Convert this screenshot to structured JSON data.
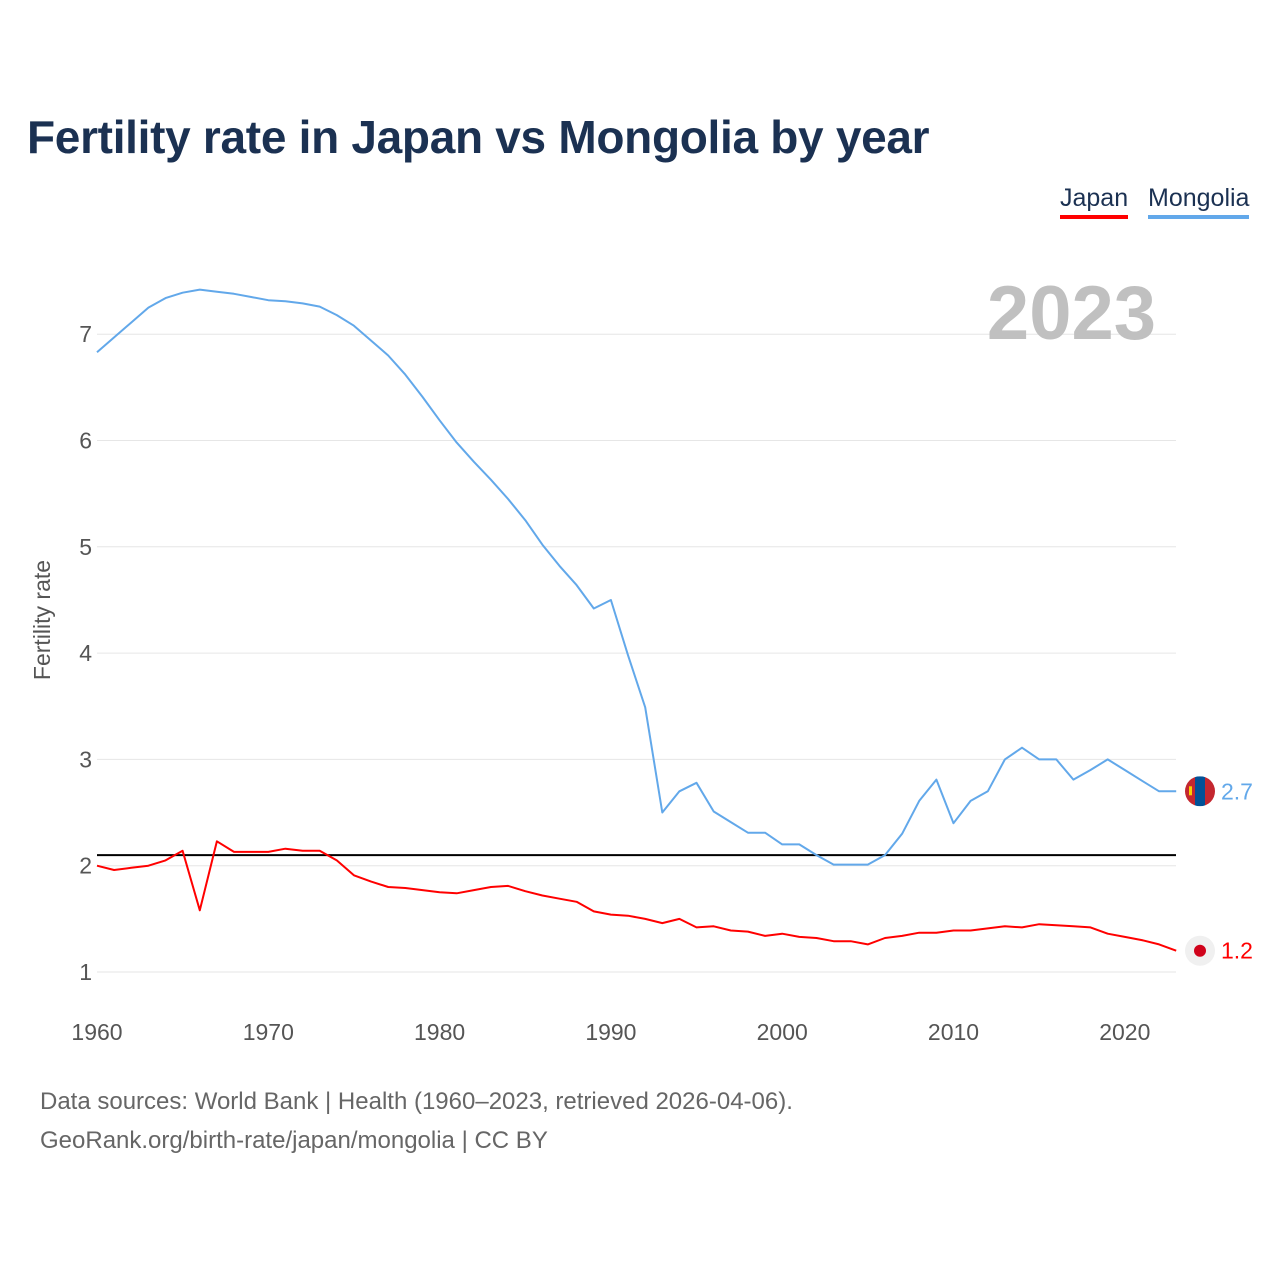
{
  "title": "Fertility rate in Japan vs Mongolia by year",
  "year_badge": "2023",
  "footer": {
    "line1": "Data sources: World Bank | Health (1960–2023, retrieved 2026-04-06).",
    "line2": "GeoRank.org/birth-rate/japan/mongolia | CC BY"
  },
  "chart_data": {
    "type": "line",
    "title": "Fertility rate in Japan vs Mongolia by year",
    "xlabel": "",
    "ylabel": "Fertility rate",
    "xlim": [
      1960,
      2023
    ],
    "ylim": [
      1,
      7.5
    ],
    "x_ticks": [
      "1960",
      "1970",
      "1980",
      "1990",
      "2000",
      "2010",
      "2020"
    ],
    "y_ticks": [
      "1",
      "2",
      "3",
      "4",
      "5",
      "6",
      "7"
    ],
    "grid": true,
    "legend_position": "top-right",
    "reference_line": 2.1,
    "x": [
      1960,
      1961,
      1962,
      1963,
      1964,
      1965,
      1966,
      1967,
      1968,
      1969,
      1970,
      1971,
      1972,
      1973,
      1974,
      1975,
      1976,
      1977,
      1978,
      1979,
      1980,
      1981,
      1982,
      1983,
      1984,
      1985,
      1986,
      1987,
      1988,
      1989,
      1990,
      1991,
      1992,
      1993,
      1994,
      1995,
      1996,
      1997,
      1998,
      1999,
      2000,
      2001,
      2002,
      2003,
      2004,
      2005,
      2006,
      2007,
      2008,
      2009,
      2010,
      2011,
      2012,
      2013,
      2014,
      2015,
      2016,
      2017,
      2018,
      2019,
      2020,
      2021,
      2022,
      2023
    ],
    "series": [
      {
        "name": "Japan",
        "color": "#ff0000",
        "end_label": "1.2",
        "values": [
          2.0,
          1.96,
          1.98,
          2.0,
          2.05,
          2.14,
          1.58,
          2.23,
          2.13,
          2.13,
          2.13,
          2.16,
          2.14,
          2.14,
          2.05,
          1.91,
          1.85,
          1.8,
          1.79,
          1.77,
          1.75,
          1.74,
          1.77,
          1.8,
          1.81,
          1.76,
          1.72,
          1.69,
          1.66,
          1.57,
          1.54,
          1.53,
          1.5,
          1.46,
          1.5,
          1.42,
          1.43,
          1.39,
          1.38,
          1.34,
          1.36,
          1.33,
          1.32,
          1.29,
          1.29,
          1.26,
          1.32,
          1.34,
          1.37,
          1.37,
          1.39,
          1.39,
          1.41,
          1.43,
          1.42,
          1.45,
          1.44,
          1.43,
          1.42,
          1.36,
          1.33,
          1.3,
          1.26,
          1.2
        ]
      },
      {
        "name": "Mongolia",
        "color": "#62a8ea",
        "end_label": "2.7",
        "values": [
          6.83,
          6.97,
          7.11,
          7.25,
          7.34,
          7.39,
          7.42,
          7.4,
          7.38,
          7.35,
          7.32,
          7.31,
          7.29,
          7.26,
          7.18,
          7.08,
          6.94,
          6.8,
          6.62,
          6.41,
          6.19,
          5.98,
          5.8,
          5.63,
          5.45,
          5.25,
          5.02,
          4.82,
          4.64,
          4.42,
          4.5,
          3.98,
          3.49,
          2.5,
          2.7,
          2.78,
          2.51,
          2.41,
          2.31,
          2.31,
          2.2,
          2.2,
          2.1,
          2.01,
          2.01,
          2.01,
          2.1,
          2.3,
          2.61,
          2.81,
          2.4,
          2.61,
          2.7,
          3.0,
          3.11,
          3.0,
          3.0,
          2.81,
          2.9,
          3.0,
          2.9,
          2.8,
          2.7,
          2.7
        ]
      }
    ]
  }
}
